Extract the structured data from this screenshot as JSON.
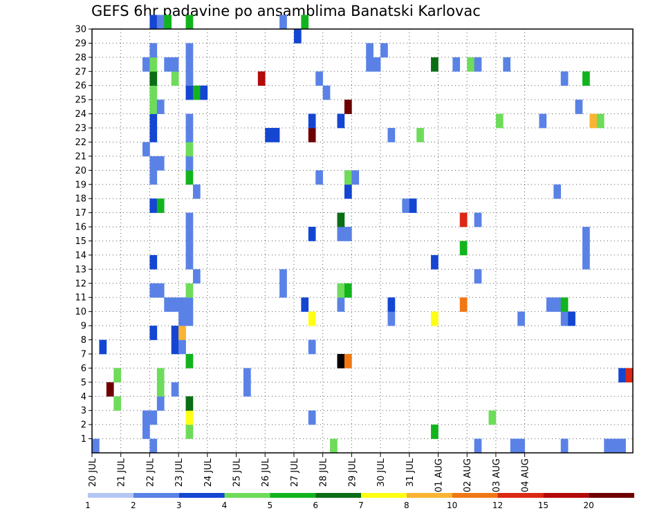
{
  "chart_data": {
    "type": "heatmap",
    "title": "GEFS 6hr padavine po ansamblima Banatski Karlovac",
    "xlabel": "",
    "ylabel": "",
    "x_unit": "6h steps from 20 JUL 00Z",
    "x_tick_labels": [
      "20 JUL",
      "21 JUL",
      "22 JUL",
      "23 JUL",
      "24 JUL",
      "25 JUL",
      "26 JUL",
      "27 JUL",
      "28 JUL",
      "29 JUL",
      "30 JUL",
      "31 JUL",
      "01 AUG",
      "02 AUG",
      "03 AUG",
      "04 AUG"
    ],
    "y_ticks": [
      1,
      2,
      3,
      4,
      5,
      6,
      7,
      8,
      9,
      10,
      11,
      12,
      13,
      14,
      15,
      16,
      17,
      18,
      19,
      20,
      21,
      22,
      23,
      24,
      25,
      26,
      27,
      28,
      29,
      30
    ],
    "ylim": [
      0,
      30
    ],
    "grid": true,
    "colorbar": {
      "labels": [
        "1",
        "2",
        "3",
        "4",
        "5",
        "6",
        "7",
        "8",
        "10",
        "12",
        "15",
        "20"
      ],
      "colors": [
        "#b4c7f2",
        "#5a82e6",
        "#1446d2",
        "#6edc5a",
        "#12b41e",
        "#0a6e14",
        "#ffff14",
        "#fab432",
        "#f07814",
        "#dc2814",
        "#b40a0a",
        "#6e0000"
      ]
    },
    "cells": [
      [
        0,
        0,
        1
      ],
      [
        1,
        7,
        2
      ],
      [
        2,
        4,
        11
      ],
      [
        3,
        3,
        3
      ],
      [
        3,
        5,
        3
      ],
      [
        7,
        1,
        1
      ],
      [
        7,
        2,
        1
      ],
      [
        7,
        21,
        1
      ],
      [
        7,
        27,
        1
      ],
      [
        8,
        0,
        1
      ],
      [
        8,
        2,
        1
      ],
      [
        8,
        8,
        2
      ],
      [
        8,
        11,
        1
      ],
      [
        8,
        13,
        2
      ],
      [
        8,
        17,
        2
      ],
      [
        8,
        19,
        1
      ],
      [
        8,
        20,
        1
      ],
      [
        8,
        22,
        2
      ],
      [
        8,
        23,
        2
      ],
      [
        8,
        24,
        3
      ],
      [
        8,
        25,
        3
      ],
      [
        8,
        26,
        5
      ],
      [
        8,
        27,
        3
      ],
      [
        8,
        28,
        1
      ],
      [
        8,
        30,
        2
      ],
      [
        9,
        3,
        1
      ],
      [
        9,
        4,
        3
      ],
      [
        9,
        5,
        3
      ],
      [
        9,
        11,
        1
      ],
      [
        9,
        17,
        4
      ],
      [
        9,
        20,
        1
      ],
      [
        9,
        24,
        1
      ],
      [
        9,
        30,
        1
      ],
      [
        10,
        10,
        1
      ],
      [
        10,
        27,
        1
      ],
      [
        10,
        30,
        4
      ],
      [
        11,
        4,
        1
      ],
      [
        11,
        7,
        2
      ],
      [
        11,
        8,
        2
      ],
      [
        11,
        10,
        1
      ],
      [
        11,
        26,
        3
      ],
      [
        11,
        27,
        1
      ],
      [
        12,
        7,
        1
      ],
      [
        12,
        8,
        7
      ],
      [
        12,
        9,
        1
      ],
      [
        12,
        10,
        1
      ],
      [
        13,
        1,
        3
      ],
      [
        13,
        2,
        6
      ],
      [
        13,
        3,
        5
      ],
      [
        13,
        6,
        4
      ],
      [
        13,
        9,
        1
      ],
      [
        13,
        10,
        1
      ],
      [
        13,
        11,
        3
      ],
      [
        13,
        13,
        1
      ],
      [
        13,
        14,
        1
      ],
      [
        13,
        15,
        1
      ],
      [
        13,
        16,
        1
      ],
      [
        13,
        19,
        4
      ],
      [
        13,
        20,
        1
      ],
      [
        13,
        21,
        3
      ],
      [
        13,
        22,
        1
      ],
      [
        13,
        23,
        1
      ],
      [
        13,
        25,
        2
      ],
      [
        13,
        26,
        1
      ],
      [
        13,
        27,
        1
      ],
      [
        13,
        28,
        1
      ],
      [
        13,
        30,
        4
      ],
      [
        14,
        12,
        1
      ],
      [
        14,
        18,
        1
      ],
      [
        14,
        25,
        4
      ],
      [
        15,
        25,
        2
      ],
      [
        21,
        4,
        1
      ],
      [
        21,
        5,
        1
      ],
      [
        23,
        26,
        10
      ],
      [
        24,
        22,
        2
      ],
      [
        25,
        22,
        2
      ],
      [
        26,
        11,
        1
      ],
      [
        26,
        12,
        1
      ],
      [
        26,
        30,
        1
      ],
      [
        28,
        29,
        2
      ],
      [
        29,
        10,
        2
      ],
      [
        29,
        30,
        4
      ],
      [
        30,
        2,
        1
      ],
      [
        30,
        7,
        1
      ],
      [
        30,
        9,
        6
      ],
      [
        30,
        15,
        2
      ],
      [
        30,
        22,
        11
      ],
      [
        30,
        23,
        2
      ],
      [
        31,
        19,
        1
      ],
      [
        31,
        26,
        1
      ],
      [
        32,
        25,
        1
      ],
      [
        33,
        0,
        3
      ],
      [
        34,
        6,
        12
      ],
      [
        34,
        10,
        1
      ],
      [
        34,
        11,
        3
      ],
      [
        34,
        15,
        1
      ],
      [
        34,
        16,
        5
      ],
      [
        34,
        23,
        2
      ],
      [
        35,
        6,
        8
      ],
      [
        35,
        11,
        4
      ],
      [
        35,
        15,
        1
      ],
      [
        35,
        18,
        2
      ],
      [
        35,
        19,
        3
      ],
      [
        35,
        24,
        11
      ],
      [
        36,
        19,
        1
      ],
      [
        38,
        28,
        1
      ],
      [
        38,
        27,
        1
      ],
      [
        39,
        27,
        1
      ],
      [
        40,
        28,
        1
      ],
      [
        41,
        9,
        1
      ],
      [
        41,
        10,
        2
      ],
      [
        41,
        22,
        1
      ],
      [
        43,
        17,
        1
      ],
      [
        44,
        17,
        2
      ],
      [
        45,
        22,
        3
      ],
      [
        47,
        1,
        4
      ],
      [
        47,
        9,
        6
      ],
      [
        47,
        13,
        2
      ],
      [
        47,
        27,
        5
      ],
      [
        50,
        27,
        1
      ],
      [
        51,
        10,
        8
      ],
      [
        51,
        14,
        4
      ],
      [
        51,
        16,
        9
      ],
      [
        52,
        27,
        3
      ],
      [
        53,
        0,
        1
      ],
      [
        53,
        12,
        1
      ],
      [
        53,
        16,
        1
      ],
      [
        53,
        27,
        1
      ],
      [
        55,
        2,
        3
      ],
      [
        56,
        23,
        3
      ],
      [
        57,
        27,
        1
      ],
      [
        58,
        0,
        1
      ],
      [
        59,
        0,
        1
      ],
      [
        59,
        9,
        1
      ],
      [
        62,
        23,
        1
      ],
      [
        63,
        10,
        1
      ],
      [
        64,
        10,
        1
      ],
      [
        64,
        18,
        1
      ],
      [
        65,
        0,
        1
      ],
      [
        65,
        9,
        1
      ],
      [
        65,
        10,
        4
      ],
      [
        65,
        26,
        1
      ],
      [
        66,
        9,
        2
      ],
      [
        67,
        24,
        1
      ],
      [
        68,
        13,
        1
      ],
      [
        68,
        14,
        1
      ],
      [
        68,
        15,
        1
      ],
      [
        68,
        26,
        4
      ],
      [
        69,
        23,
        7
      ],
      [
        70,
        23,
        3
      ],
      [
        71,
        0,
        1
      ],
      [
        72,
        0,
        1
      ],
      [
        73,
        0,
        1
      ],
      [
        73,
        5,
        2
      ],
      [
        74,
        5,
        9
      ]
    ]
  }
}
